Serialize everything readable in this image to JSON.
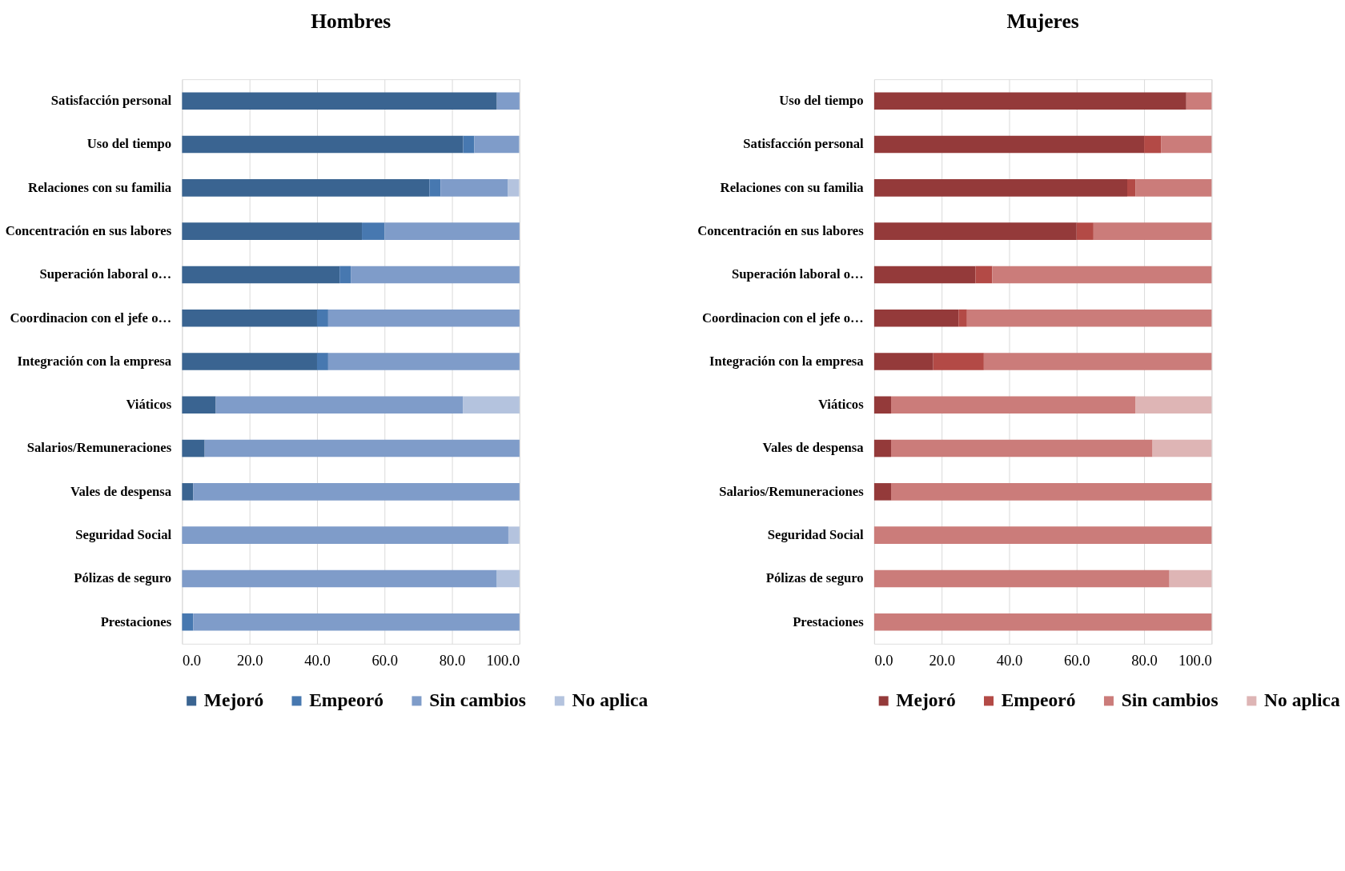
{
  "chart_data": [
    {
      "type": "bar",
      "orientation": "horizontal",
      "stacked": true,
      "title": "Hombres",
      "categories": [
        "Satisfacción personal",
        "Uso del tiempo",
        "Relaciones con su familia",
        "Concentración en sus labores",
        "Superación laboral o…",
        "Coordinacion con el jefe o…",
        "Integración con la empresa",
        "Viáticos",
        "Salarios/Remuneraciones",
        "Vales de despensa",
        "Seguridad Social",
        "Pólizas de seguro",
        "Prestaciones"
      ],
      "series": [
        {
          "name": "Mejoró",
          "color": "#3a6491",
          "values": [
            93.3,
            83.3,
            73.3,
            53.3,
            46.7,
            40.0,
            40.0,
            10.0,
            6.7,
            3.3,
            0,
            0,
            0
          ]
        },
        {
          "name": "Empeoró",
          "color": "#4778b0",
          "values": [
            0,
            3.3,
            3.3,
            6.7,
            3.3,
            3.3,
            3.3,
            0,
            0,
            0,
            0,
            0,
            3.3
          ]
        },
        {
          "name": "Sin cambios",
          "color": "#7f9cc9",
          "values": [
            6.7,
            13.3,
            20.0,
            40.0,
            50.0,
            56.7,
            56.7,
            73.3,
            93.3,
            96.7,
            96.7,
            93.3,
            96.7
          ]
        },
        {
          "name": "No aplica",
          "color": "#b4c3de",
          "values": [
            0,
            0,
            3.3,
            0,
            0,
            0,
            0,
            16.7,
            0,
            0,
            3.3,
            6.7,
            0
          ]
        }
      ],
      "xlim": [
        0,
        100
      ],
      "xticks": [
        {
          "value": 0,
          "label": "0.0"
        },
        {
          "value": 20,
          "label": "20.0"
        },
        {
          "value": 40,
          "label": "40.0"
        },
        {
          "value": 60,
          "label": "60.0"
        },
        {
          "value": 80,
          "label": "80.0"
        },
        {
          "value": 100,
          "label": "100.0"
        }
      ],
      "grid": "x",
      "legend": "bottom"
    },
    {
      "type": "bar",
      "orientation": "horizontal",
      "stacked": true,
      "title": "Mujeres",
      "categories": [
        "Uso del tiempo",
        "Satisfacción personal",
        "Relaciones con su familia",
        "Concentración en sus labores",
        "Superación laboral o…",
        "Coordinacion con el jefe o…",
        "Integración con la empresa",
        "Viáticos",
        "Vales de despensa",
        "Salarios/Remuneraciones",
        "Seguridad Social",
        "Pólizas de seguro",
        "Prestaciones"
      ],
      "series": [
        {
          "name": "Mejoró",
          "color": "#943a3a",
          "values": [
            92.5,
            80.0,
            75.0,
            60.0,
            30.0,
            25.0,
            17.5,
            5.0,
            5.0,
            5.0,
            0,
            0,
            0
          ]
        },
        {
          "name": "Empeoró",
          "color": "#b34a46",
          "values": [
            0,
            5.0,
            2.5,
            5.0,
            5.0,
            2.5,
            15.0,
            0,
            0,
            0,
            0,
            0,
            0
          ]
        },
        {
          "name": "Sin cambios",
          "color": "#cb7c7a",
          "values": [
            7.5,
            15.0,
            22.5,
            35.0,
            65.0,
            72.5,
            67.5,
            72.5,
            77.5,
            95.0,
            100.0,
            87.5,
            100.0
          ]
        },
        {
          "name": "No aplica",
          "color": "#deb5b5",
          "values": [
            0,
            0,
            0,
            0,
            0,
            0,
            0,
            22.5,
            17.5,
            0,
            0,
            12.5,
            0
          ]
        }
      ],
      "xlim": [
        0,
        100
      ],
      "xticks": [
        {
          "value": 0,
          "label": "0.0"
        },
        {
          "value": 20,
          "label": "20.0"
        },
        {
          "value": 40,
          "label": "40.0"
        },
        {
          "value": 60,
          "label": "60.0"
        },
        {
          "value": 80,
          "label": "80.0"
        },
        {
          "value": 100,
          "label": "100.0"
        }
      ],
      "grid": "x",
      "legend": "bottom"
    }
  ]
}
